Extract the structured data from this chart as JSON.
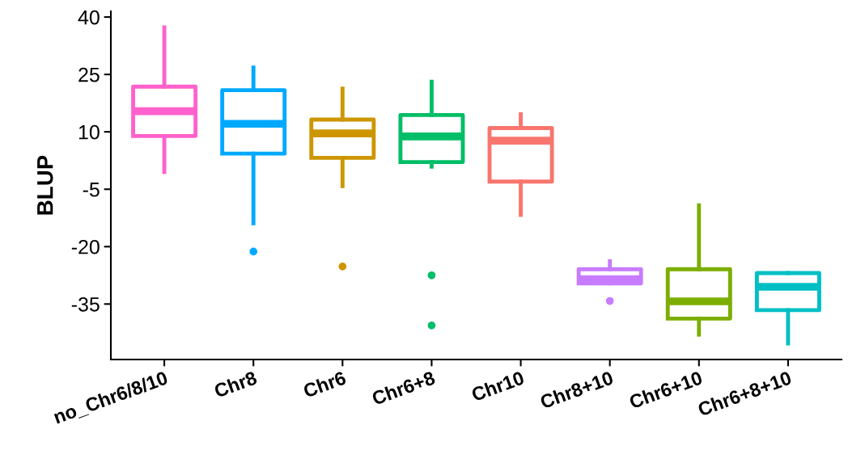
{
  "chart_data": {
    "type": "box",
    "ylabel": "BLUP",
    "categories": [
      "no_Chr6/8/10",
      "Chr8",
      "Chr6",
      "Chr6+8",
      "Chr10",
      "Chr8+10",
      "Chr6+10",
      "Chr6+8+10"
    ],
    "colors": [
      "#ff61cc",
      "#00a9ff",
      "#cd9600",
      "#00be67",
      "#f8766d",
      "#c77cff",
      "#7cae00",
      "#00bfc4"
    ],
    "boxes": [
      {
        "low": -0.5,
        "q1": 8.9,
        "median": 15.4,
        "q3": 21.8,
        "high": 37.3
      },
      {
        "low": -13.9,
        "q1": 4.3,
        "median": 12.1,
        "q3": 20.9,
        "high": 26.8,
        "outliers": [
          -21.3
        ]
      },
      {
        "low": -4.2,
        "q1": 3.2,
        "median": 9.6,
        "q3": 13.2,
        "high": 21.3,
        "outliers": [
          -25.2
        ]
      },
      {
        "low": 0.9,
        "q1": 2.1,
        "median": 8.8,
        "q3": 14.4,
        "high": 23.1,
        "outliers": [
          -27.5,
          -40.6
        ]
      },
      {
        "low": -11.7,
        "q1": -3.0,
        "median": 7.7,
        "q3": 11.0,
        "high": 14.6
      },
      {
        "low": -29.6,
        "q1": -29.6,
        "median": -28.5,
        "q3": -25.9,
        "high": -23.8,
        "outliers": [
          -34.2
        ]
      },
      {
        "low": -43.0,
        "q1": -38.8,
        "median": -34.3,
        "q3": -25.9,
        "high": -9.2
      },
      {
        "low": -45.3,
        "q1": -36.6,
        "median": -30.5,
        "q3": -26.9,
        "high": -26.9
      }
    ],
    "ylim": [
      -49.5,
      41.5
    ],
    "yticks": [
      -35,
      -20,
      -5,
      10,
      25,
      40
    ],
    "grid": false,
    "legend": false
  }
}
